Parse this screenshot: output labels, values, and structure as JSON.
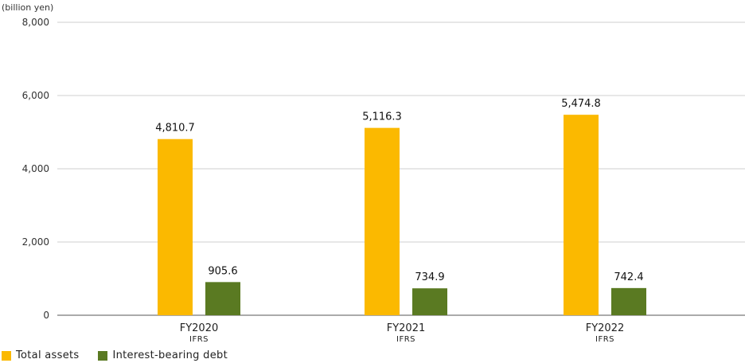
{
  "chart_data": {
    "type": "bar",
    "unit_label": "(billion yen)",
    "categories": [
      "FY2020",
      "FY2021",
      "FY2022"
    ],
    "category_sublabels": [
      "IFRS",
      "IFRS",
      "IFRS"
    ],
    "ylim": [
      0,
      8000
    ],
    "yticks": [
      0,
      2000,
      4000,
      6000,
      8000
    ],
    "ytick_labels": [
      "0",
      "2,000",
      "4,000",
      "6,000",
      "8,000"
    ],
    "grid": true,
    "legend_position": "bottom-left",
    "series": [
      {
        "name": "Total assets",
        "color": "#FBB900",
        "values": [
          4810.7,
          5116.3,
          5474.8
        ],
        "value_labels": [
          "4,810.7",
          "5,116.3",
          "5,474.8"
        ]
      },
      {
        "name": "Interest-bearing debt",
        "color": "#5A7A22",
        "values": [
          905.6,
          734.9,
          742.4
        ],
        "value_labels": [
          "905.6",
          "734.9",
          "742.4"
        ]
      }
    ]
  }
}
